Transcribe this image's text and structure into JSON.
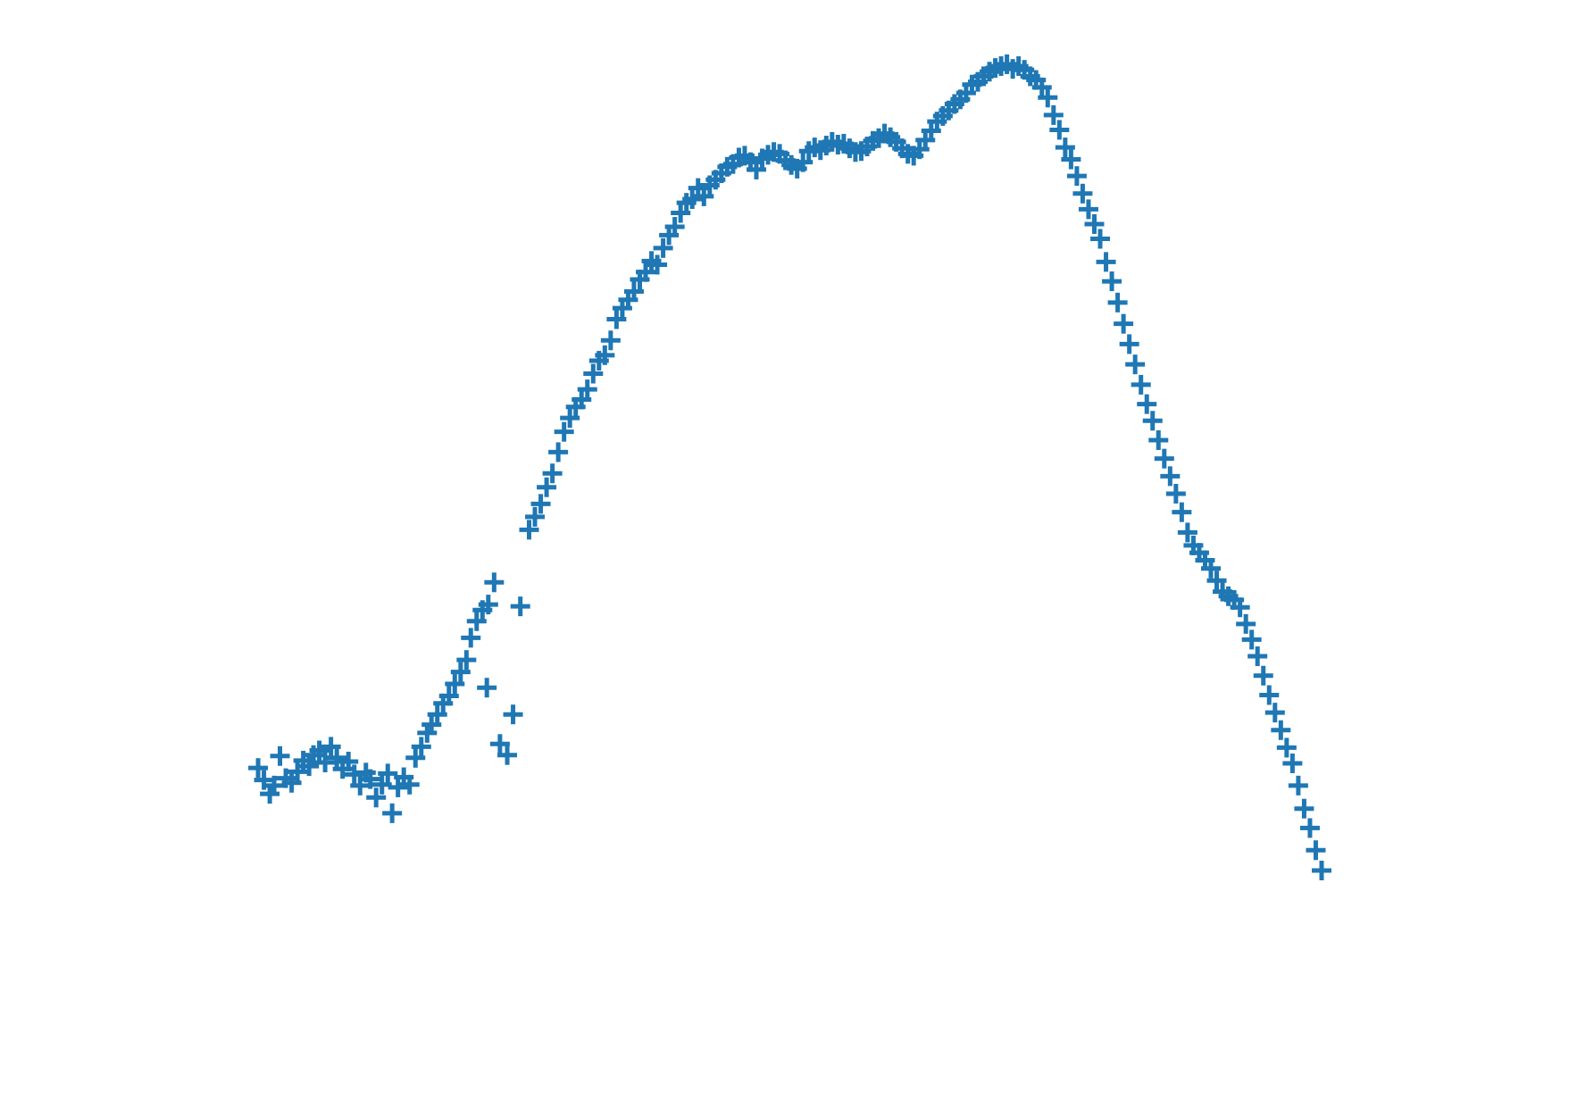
{
  "chart_data": {
    "type": "scatter",
    "marker": "plus",
    "color": "#1f77b4",
    "axes_visible": false,
    "grid": false,
    "xlim": [
      0,
      100
    ],
    "ylim": [
      0,
      100
    ],
    "series": [
      {
        "points": [
          [
            0.8,
            21.5
          ],
          [
            1.2,
            20.2
          ],
          [
            1.6,
            18.7
          ],
          [
            1.9,
            19.6
          ],
          [
            2.3,
            22.8
          ],
          [
            2.7,
            20.4
          ],
          [
            3.1,
            19.9
          ],
          [
            3.5,
            21.1
          ],
          [
            3.9,
            22.3
          ],
          [
            4.3,
            21.7
          ],
          [
            4.6,
            22.9
          ],
          [
            5.0,
            23.4
          ],
          [
            5.4,
            22.1
          ],
          [
            5.8,
            23.8
          ],
          [
            6.2,
            22.6
          ],
          [
            6.6,
            21.4
          ],
          [
            7.0,
            22.2
          ],
          [
            7.4,
            20.8
          ],
          [
            7.8,
            19.6
          ],
          [
            8.2,
            21.0
          ],
          [
            8.5,
            20.3
          ],
          [
            8.9,
            18.3
          ],
          [
            9.3,
            19.7
          ],
          [
            9.7,
            20.9
          ],
          [
            10.0,
            16.6
          ],
          [
            10.4,
            19.4
          ],
          [
            10.8,
            20.5
          ],
          [
            11.2,
            19.7
          ],
          [
            11.6,
            22.6
          ],
          [
            12.0,
            23.8
          ],
          [
            12.4,
            25.3
          ],
          [
            12.7,
            26.2
          ],
          [
            13.1,
            27.3
          ],
          [
            13.5,
            28.5
          ],
          [
            13.9,
            29.3
          ],
          [
            14.3,
            30.6
          ],
          [
            14.7,
            31.9
          ],
          [
            15.1,
            33.2
          ],
          [
            15.4,
            35.6
          ],
          [
            15.8,
            37.4
          ],
          [
            16.2,
            38.6
          ],
          [
            16.6,
            39.2
          ],
          [
            17.0,
            41.6
          ],
          [
            16.5,
            30.2
          ],
          [
            17.4,
            24.1
          ],
          [
            17.9,
            22.9
          ],
          [
            18.3,
            27.3
          ],
          [
            18.8,
            39.0
          ],
          [
            19.4,
            47.3
          ],
          [
            19.8,
            48.7
          ],
          [
            20.2,
            50.1
          ],
          [
            20.6,
            51.9
          ],
          [
            21.0,
            53.4
          ],
          [
            21.4,
            55.7
          ],
          [
            21.8,
            57.9
          ],
          [
            22.2,
            59.4
          ],
          [
            22.6,
            60.6
          ],
          [
            23.0,
            61.4
          ],
          [
            23.4,
            62.5
          ],
          [
            23.8,
            64.2
          ],
          [
            24.2,
            65.6
          ],
          [
            24.6,
            66.2
          ],
          [
            25.0,
            67.8
          ],
          [
            25.4,
            70.1
          ],
          [
            25.8,
            71.3
          ],
          [
            26.2,
            72.2
          ],
          [
            26.6,
            73.1
          ],
          [
            27.0,
            74.4
          ],
          [
            27.4,
            75.2
          ],
          [
            27.8,
            76.4
          ],
          [
            28.2,
            76.0
          ],
          [
            28.6,
            77.8
          ],
          [
            29.0,
            79.2
          ],
          [
            29.4,
            80.1
          ],
          [
            29.8,
            81.6
          ],
          [
            30.2,
            82.7
          ],
          [
            30.6,
            83.1
          ],
          [
            31.0,
            84.3
          ],
          [
            31.4,
            83.4
          ],
          [
            31.8,
            84.6
          ],
          [
            32.2,
            85.2
          ],
          [
            32.6,
            85.9
          ],
          [
            33.0,
            86.6
          ],
          [
            33.4,
            86.9
          ],
          [
            33.8,
            87.6
          ],
          [
            34.2,
            87.8
          ],
          [
            34.6,
            87.1
          ],
          [
            35.0,
            86.3
          ],
          [
            35.4,
            87.5
          ],
          [
            35.8,
            87.9
          ],
          [
            36.2,
            88.2
          ],
          [
            36.6,
            88.0
          ],
          [
            37.0,
            87.3
          ],
          [
            37.4,
            86.8
          ],
          [
            37.8,
            86.4
          ],
          [
            38.2,
            87.1
          ],
          [
            38.6,
            88.3
          ],
          [
            39.0,
            88.7
          ],
          [
            39.4,
            88.4
          ],
          [
            39.8,
            88.9
          ],
          [
            40.2,
            89.3
          ],
          [
            40.6,
            89.0
          ],
          [
            41.0,
            89.1
          ],
          [
            41.4,
            88.6
          ],
          [
            41.8,
            88.2
          ],
          [
            42.2,
            88.3
          ],
          [
            42.6,
            88.8
          ],
          [
            43.0,
            89.4
          ],
          [
            43.4,
            89.7
          ],
          [
            43.8,
            90.2
          ],
          [
            44.2,
            89.8
          ],
          [
            44.6,
            89.3
          ],
          [
            45.0,
            88.6
          ],
          [
            45.4,
            88.0
          ],
          [
            45.8,
            87.8
          ],
          [
            46.2,
            88.5
          ],
          [
            46.6,
            89.5
          ],
          [
            47.0,
            90.5
          ],
          [
            47.4,
            91.5
          ],
          [
            47.8,
            92.1
          ],
          [
            48.2,
            92.7
          ],
          [
            48.6,
            93.4
          ],
          [
            49.0,
            93.9
          ],
          [
            49.4,
            94.6
          ],
          [
            49.8,
            95.5
          ],
          [
            50.2,
            95.8
          ],
          [
            50.6,
            96.4
          ],
          [
            51.0,
            96.9
          ],
          [
            51.4,
            97.3
          ],
          [
            51.8,
            97.5
          ],
          [
            52.2,
            97.7
          ],
          [
            52.6,
            97.2
          ],
          [
            53.0,
            97.5
          ],
          [
            53.4,
            97.1
          ],
          [
            53.8,
            96.4
          ],
          [
            54.2,
            96.0
          ],
          [
            54.6,
            95.2
          ],
          [
            55.0,
            94.1
          ],
          [
            55.4,
            92.2
          ],
          [
            55.8,
            90.6
          ],
          [
            56.2,
            88.7
          ],
          [
            56.6,
            87.4
          ],
          [
            57.0,
            85.6
          ],
          [
            57.4,
            83.7
          ],
          [
            57.8,
            82.0
          ],
          [
            58.2,
            80.4
          ],
          [
            58.6,
            78.8
          ],
          [
            59.0,
            76.3
          ],
          [
            59.4,
            74.2
          ],
          [
            59.8,
            71.9
          ],
          [
            60.2,
            69.6
          ],
          [
            60.6,
            67.4
          ],
          [
            61.0,
            65.2
          ],
          [
            61.4,
            63.0
          ],
          [
            61.8,
            60.9
          ],
          [
            62.2,
            59.1
          ],
          [
            62.6,
            57.0
          ],
          [
            63.0,
            55.0
          ],
          [
            63.4,
            53.1
          ],
          [
            63.8,
            51.2
          ],
          [
            64.2,
            49.2
          ],
          [
            64.6,
            47.0
          ],
          [
            65.0,
            45.6
          ],
          [
            65.4,
            44.8
          ],
          [
            65.8,
            44.0
          ],
          [
            66.2,
            43.1
          ],
          [
            66.6,
            41.8
          ],
          [
            67.0,
            40.6
          ],
          [
            67.4,
            40.1
          ],
          [
            67.8,
            39.7
          ],
          [
            68.2,
            38.9
          ],
          [
            68.6,
            37.1
          ],
          [
            69.0,
            35.4
          ],
          [
            69.4,
            33.6
          ],
          [
            69.8,
            31.5
          ],
          [
            70.2,
            29.4
          ],
          [
            70.6,
            27.5
          ],
          [
            71.0,
            25.6
          ],
          [
            71.4,
            23.7
          ],
          [
            71.8,
            22.0
          ],
          [
            72.2,
            19.6
          ],
          [
            72.6,
            17.1
          ],
          [
            73.0,
            15.0
          ],
          [
            73.4,
            12.6
          ],
          [
            73.8,
            10.4
          ]
        ]
      }
    ]
  }
}
